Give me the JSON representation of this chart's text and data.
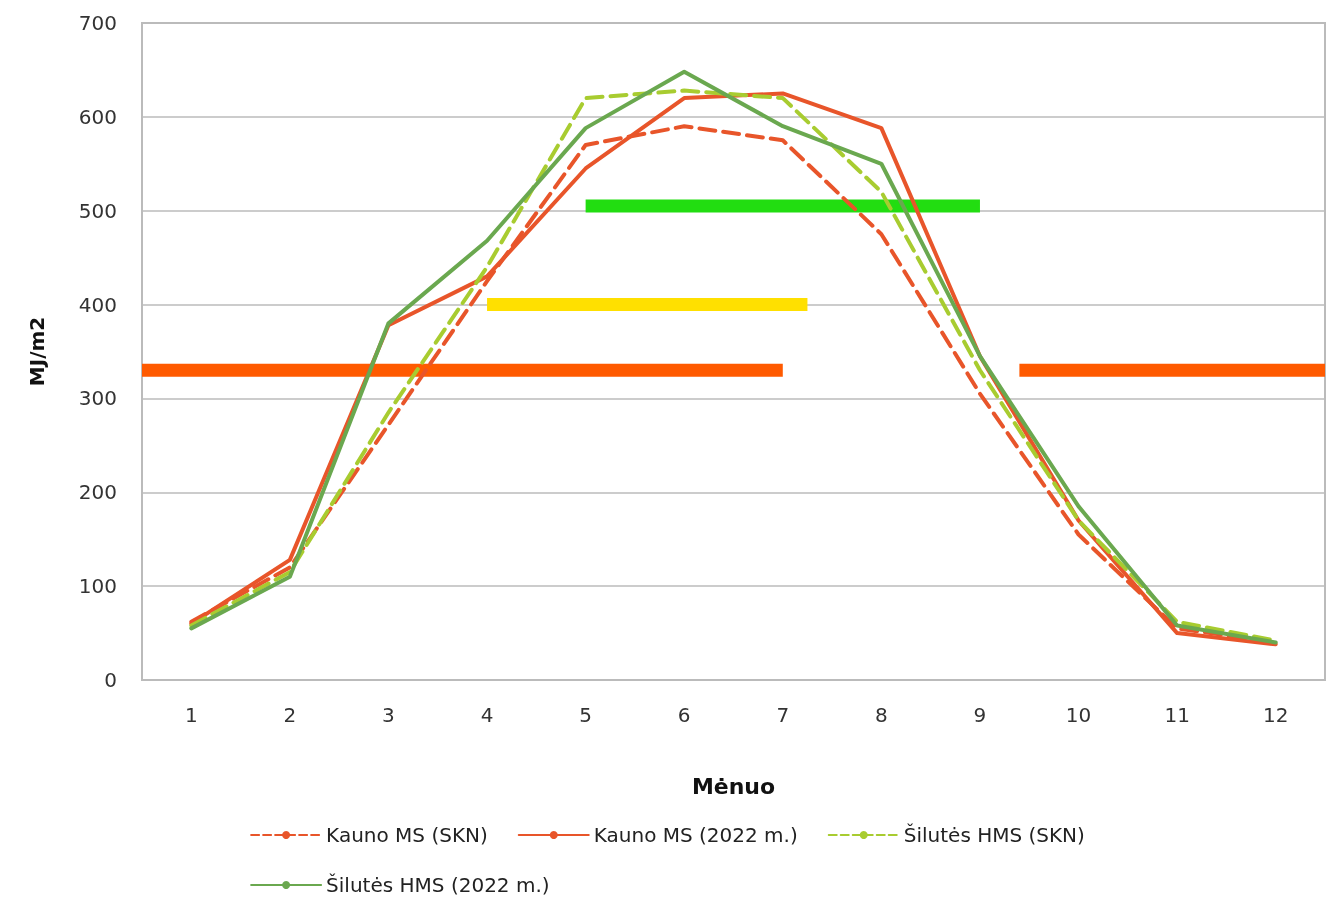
{
  "chart_data": {
    "type": "line",
    "xlabel": "Mėnuo",
    "ylabel": "MJ/m2",
    "x": [
      1,
      2,
      3,
      4,
      5,
      6,
      7,
      8,
      9,
      10,
      11,
      12
    ],
    "xlim": [
      0.5,
      12.5
    ],
    "xticks": [
      1,
      2,
      3,
      4,
      5,
      6,
      7,
      8,
      9,
      10,
      11,
      12
    ],
    "ylim": [
      0,
      700
    ],
    "yticks": [
      0,
      100,
      200,
      300,
      400,
      500,
      600,
      700
    ],
    "grid": "y",
    "legend": "bottom",
    "marker": "none",
    "series": [
      {
        "name": "Kauno MS (SKN)",
        "color": "#e8552a",
        "line_style": "dashed",
        "values": [
          62,
          120,
          272,
          425,
          570,
          590,
          575,
          475,
          305,
          155,
          55,
          40
        ]
      },
      {
        "name": "Kauno MS (2022 m.)",
        "color": "#e8552a",
        "line_style": "solid",
        "values": [
          60,
          128,
          378,
          430,
          545,
          620,
          625,
          588,
          345,
          170,
          50,
          38
        ]
      },
      {
        "name": "Šilutės HMS (SKN)",
        "color": "#a8cc30",
        "line_style": "dashed",
        "values": [
          58,
          115,
          285,
          440,
          620,
          628,
          620,
          520,
          330,
          170,
          62,
          42
        ]
      },
      {
        "name": "Šilutės HMS (2022 m.)",
        "color": "#6aa84f",
        "line_style": "solid",
        "values": [
          55,
          110,
          380,
          468,
          588,
          648,
          590,
          550,
          345,
          185,
          58,
          40
        ]
      },
      {
        "color": "#ff5a00",
        "line_style": "solid",
        "x": [
          0.5,
          7
        ],
        "values": [
          330,
          330
        ]
      },
      {
        "color": "#ffe000",
        "line_style": "solid",
        "x": [
          4,
          7.25
        ],
        "values": [
          400,
          400
        ]
      },
      {
        "color": "#22dd11",
        "line_style": "solid",
        "x": [
          5,
          9
        ],
        "values": [
          505,
          505
        ]
      },
      {
        "color": "#ff5a00",
        "line_style": "solid",
        "x": [
          9.4,
          12.5
        ],
        "values": [
          330,
          330
        ]
      }
    ]
  }
}
